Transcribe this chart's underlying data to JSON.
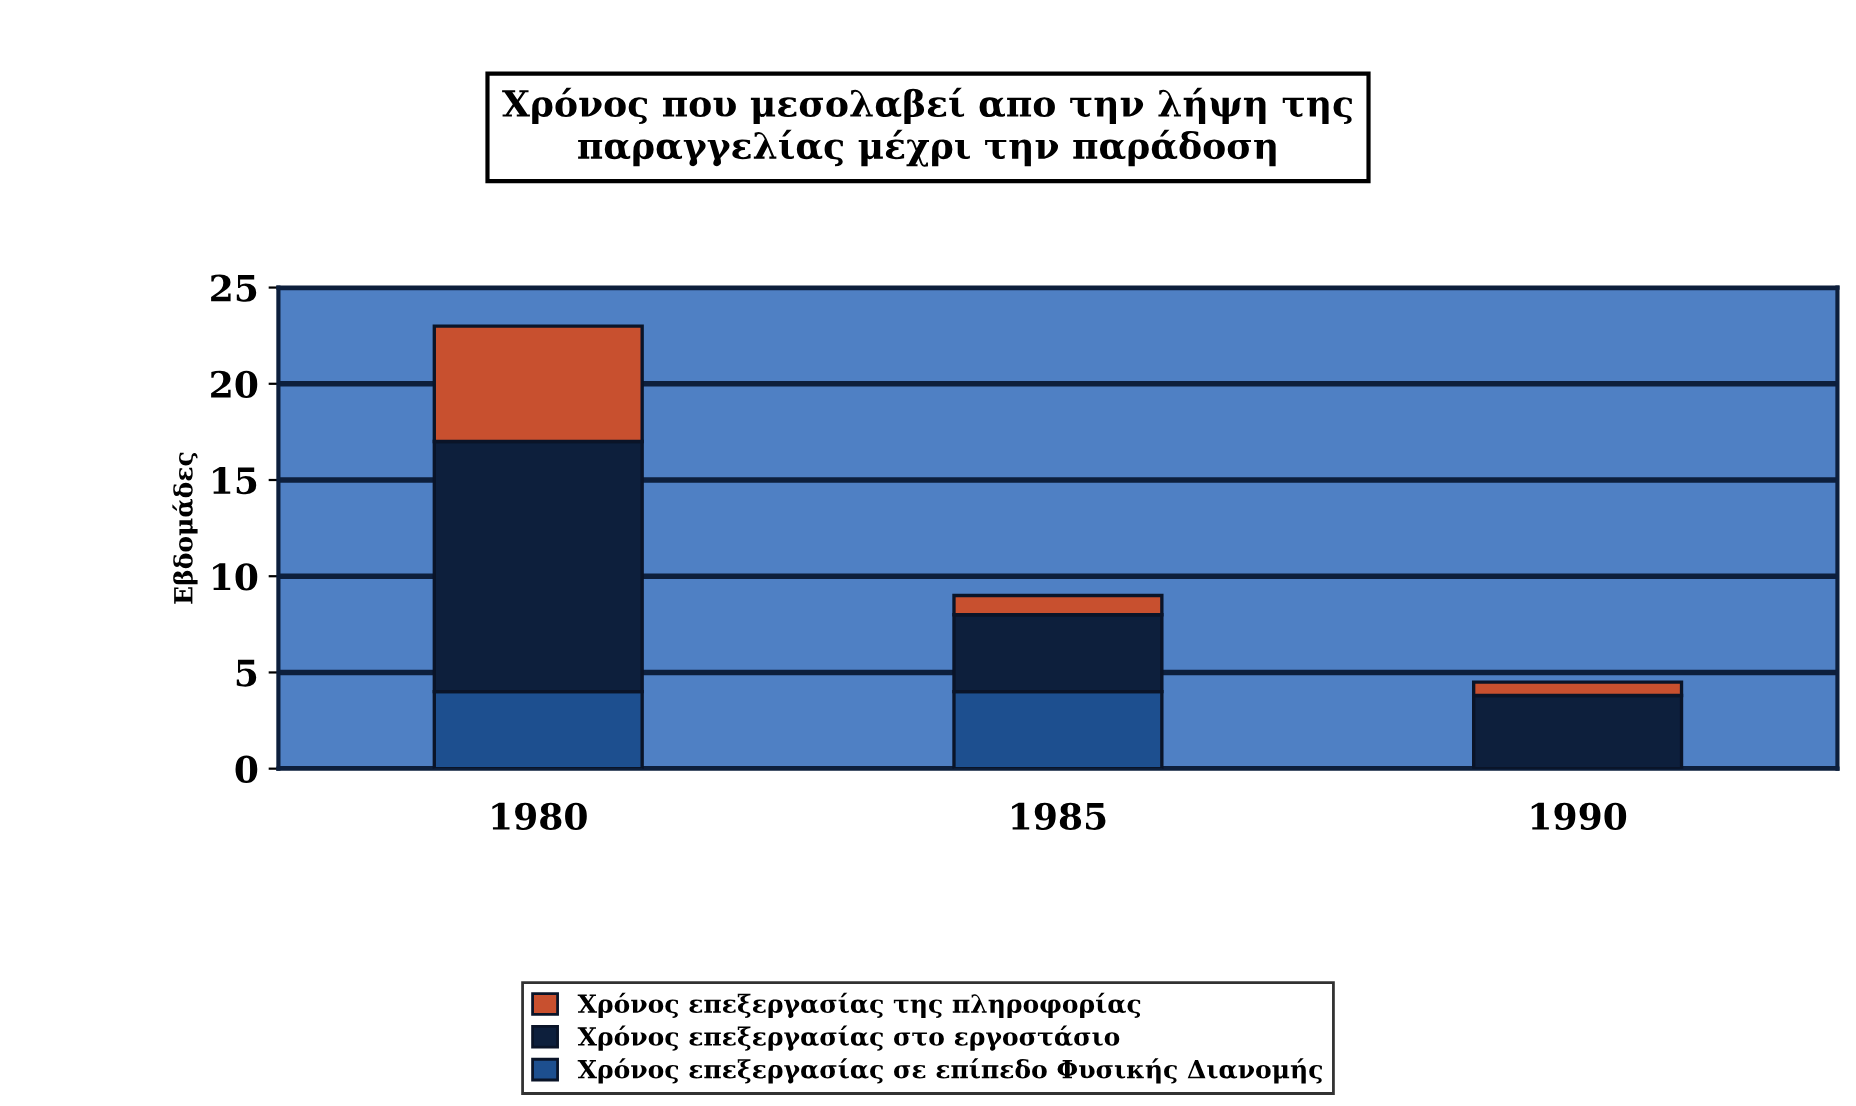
{
  "chart_data": {
    "type": "bar",
    "stacked": true,
    "title": "Χρόνος που μεσολαβεί απο την λήψη της\nπαραγγελίας μέχρι την παράδοση",
    "ylabel": "Εβδομάδες",
    "categories": [
      "1980",
      "1985",
      "1990"
    ],
    "series": [
      {
        "name": "Χρόνος επεξεργασίας σε επίπεδο Φυσικής Διανομής",
        "color": "#1d4f8f",
        "values": [
          4,
          4,
          0
        ]
      },
      {
        "name": "Χρόνος επεξεργασίας στο εργοστάσιο",
        "color": "#0d1f3c",
        "values": [
          13,
          4,
          3.8
        ]
      },
      {
        "name": "Χρόνος επεξεργασίας της πληροφορίας",
        "color": "#c8502f",
        "values": [
          6,
          1,
          0.7
        ]
      }
    ],
    "ylim": [
      0,
      25
    ],
    "yticks": [
      0,
      5,
      10,
      15,
      20,
      25
    ],
    "grid": "y",
    "legend": "bottom"
  }
}
